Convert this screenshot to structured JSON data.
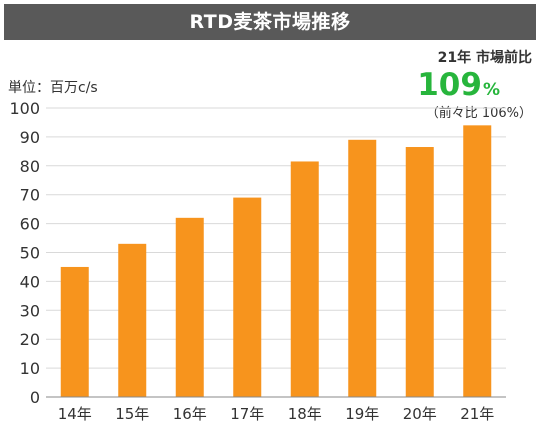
{
  "chart_data": {
    "type": "bar",
    "title": "RTD麦茶市場推移",
    "ylabel": "単位：百万c/s",
    "xlabel": "",
    "categories": [
      "14年",
      "15年",
      "16年",
      "17年",
      "18年",
      "19年",
      "20年",
      "21年"
    ],
    "values": [
      45,
      53,
      62,
      69,
      81.5,
      89,
      86.5,
      94
    ],
    "ylim": [
      0,
      100
    ],
    "yticks": [
      0,
      10,
      20,
      30,
      40,
      50,
      60,
      70,
      80,
      90,
      100
    ],
    "grid": true,
    "legend": "none",
    "bar_color": "#f7941d",
    "annotation": {
      "label": "21年 市場前比",
      "value": "109",
      "unit": "%",
      "sub": "（前々比 106%）",
      "color": "#27b53c"
    }
  },
  "colors": {
    "title_bg": "#595959",
    "title_text": "#ffffff",
    "grid": "#d9d9d9",
    "axis": "#888888",
    "text": "#333333"
  }
}
